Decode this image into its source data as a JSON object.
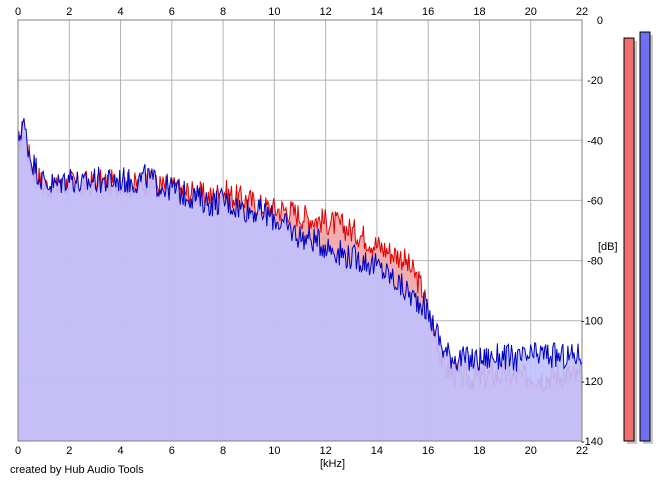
{
  "chart_data": {
    "type": "area",
    "title": "",
    "xlabel": "[kHz]",
    "ylabel": "[dB]",
    "xlim": [
      0,
      22
    ],
    "ylim": [
      -140,
      0
    ],
    "x_ticks": [
      0,
      2,
      4,
      6,
      8,
      10,
      12,
      14,
      16,
      18,
      20,
      22
    ],
    "x_tick_labels": [
      "0",
      "2",
      "4",
      "6",
      "8",
      "10",
      "12",
      "14",
      "16",
      "18",
      "20",
      "22"
    ],
    "y_ticks": [
      0,
      -20,
      -40,
      -60,
      -80,
      -100,
      -120,
      -140
    ],
    "y_tick_labels": [
      "0",
      "-20",
      "-40",
      "-60",
      "-80",
      "-100",
      "-120",
      "-140"
    ],
    "grid": true,
    "series": [
      {
        "color": "#e00000",
        "fill": "#f0a0a0",
        "x": [
          0,
          0.2,
          0.5,
          1.0,
          1.5,
          2.0,
          2.5,
          3.0,
          3.5,
          4.0,
          4.5,
          5.0,
          5.5,
          6.0,
          6.5,
          7.0,
          7.5,
          8.0,
          8.5,
          9.0,
          9.5,
          10.0,
          10.5,
          11.0,
          11.5,
          12.0,
          12.5,
          13.0,
          13.5,
          14.0,
          14.5,
          15.0,
          15.5,
          15.8,
          16.0,
          16.3,
          16.6,
          17.0,
          17.5,
          18.0,
          18.5,
          19.0,
          19.5,
          20.0,
          20.5,
          21.0,
          21.5,
          22.0
        ],
        "values": [
          -42,
          -36,
          -48,
          -55,
          -56,
          -54,
          -55,
          -54,
          -54,
          -54,
          -55,
          -54,
          -55,
          -56,
          -57,
          -58,
          -59,
          -57,
          -59,
          -60,
          -62,
          -63,
          -63,
          -65,
          -66,
          -67,
          -68,
          -70,
          -72,
          -75,
          -77,
          -79,
          -85,
          -90,
          -98,
          -105,
          -115,
          -118,
          -119,
          -119,
          -118,
          -118,
          -119,
          -118,
          -119,
          -118,
          -118,
          -119
        ]
      },
      {
        "color": "#0000c0",
        "fill": "#c0c0ff",
        "x": [
          0,
          0.2,
          0.5,
          1.0,
          1.5,
          2.0,
          2.5,
          3.0,
          3.5,
          4.0,
          4.5,
          5.0,
          5.5,
          6.0,
          6.5,
          7.0,
          7.5,
          8.0,
          8.5,
          9.0,
          9.5,
          10.0,
          10.5,
          11.0,
          11.5,
          12.0,
          12.5,
          13.0,
          13.5,
          14.0,
          14.5,
          15.0,
          15.5,
          15.8,
          16.0,
          16.3,
          16.6,
          17.0,
          17.5,
          18.0,
          18.5,
          19.0,
          19.5,
          20.0,
          20.5,
          21.0,
          21.5,
          22.0
        ],
        "values": [
          -40,
          -34,
          -46,
          -54,
          -55,
          -52,
          -55,
          -53,
          -54,
          -53,
          -54,
          -52,
          -55,
          -56,
          -58,
          -59,
          -61,
          -60,
          -62,
          -63,
          -64,
          -66,
          -69,
          -72,
          -73,
          -75,
          -77,
          -79,
          -80,
          -82,
          -85,
          -89,
          -93,
          -94,
          -98,
          -103,
          -110,
          -112,
          -113,
          -113,
          -112,
          -112,
          -113,
          -112,
          -111,
          -112,
          -112,
          -111
        ]
      }
    ],
    "level_meters": [
      {
        "color": "#ee7070",
        "level_db": -6
      },
      {
        "color": "#7070ee",
        "level_db": -4
      }
    ]
  },
  "credit_text": "created by Hub Audio Tools"
}
